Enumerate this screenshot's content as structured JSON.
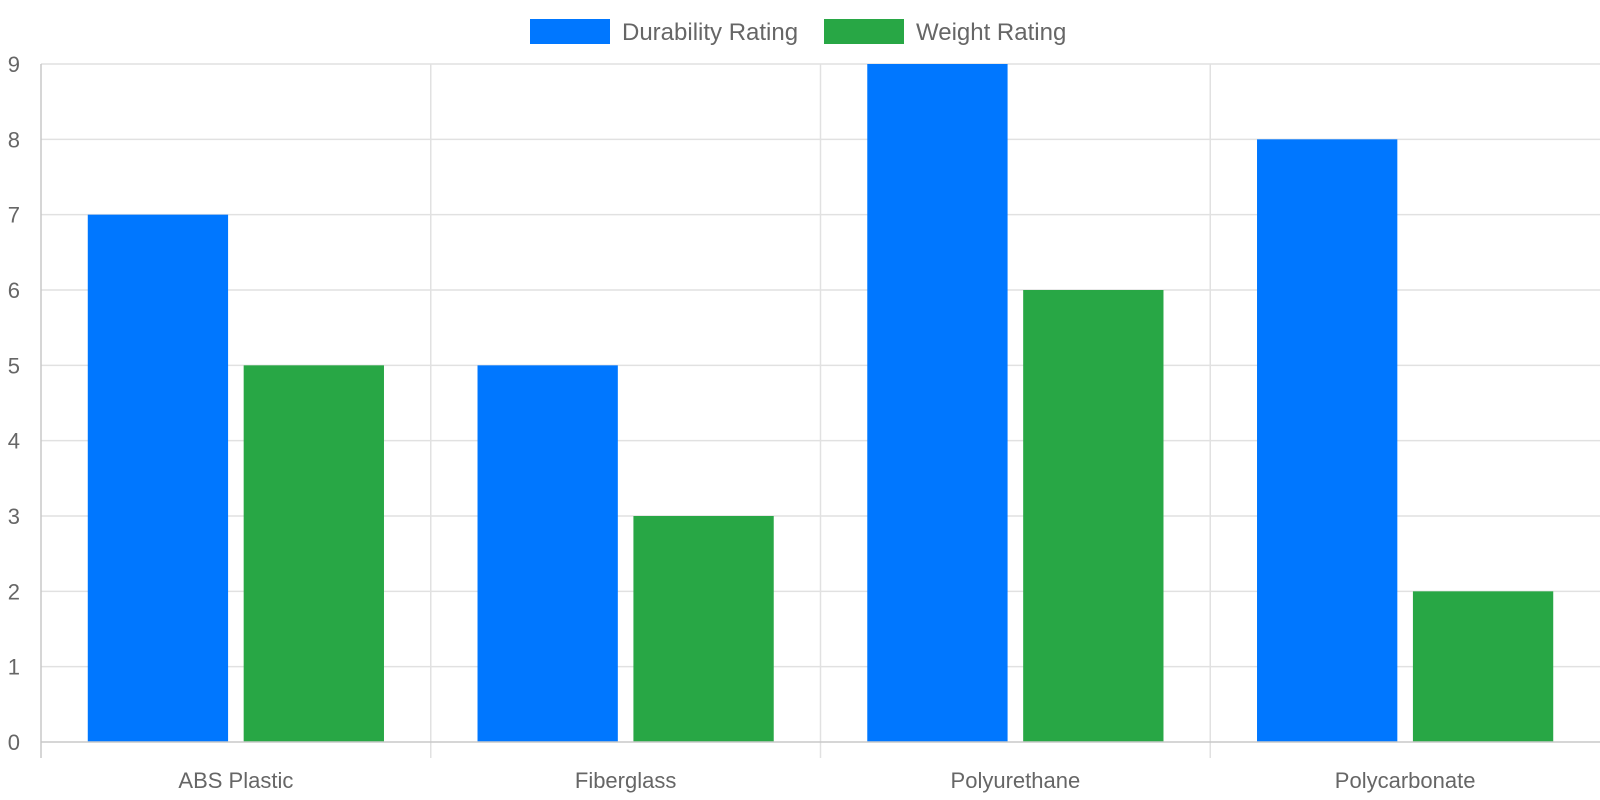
{
  "chart_data": {
    "type": "bar",
    "categories": [
      "ABS Plastic",
      "Fiberglass",
      "Polyurethane",
      "Polycarbonate"
    ],
    "series": [
      {
        "name": "Durability Rating",
        "values": [
          7,
          5,
          9,
          8
        ],
        "color": "#0077ff"
      },
      {
        "name": "Weight Rating",
        "values": [
          5,
          3,
          6,
          2
        ],
        "color": "#28a745"
      }
    ],
    "ylim": [
      0,
      9
    ],
    "yticks": [
      "0",
      "1",
      "2",
      "3",
      "4",
      "5",
      "6",
      "7",
      "8",
      "9"
    ],
    "grid": true,
    "legend_position": "top-center"
  }
}
